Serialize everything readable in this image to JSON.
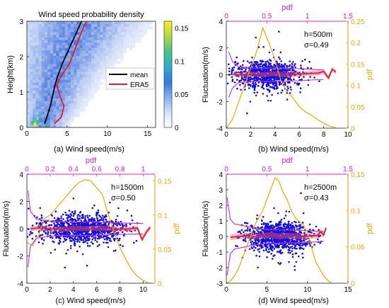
{
  "figure": {
    "captions": [
      "(a) Wind speed(m/s)",
      "(b) Wind speed(m/s)",
      "(c) Wind speed(m/s)",
      "(d) Wind speed(m/s)"
    ]
  },
  "colors": {
    "mean": "#000000",
    "era5": "#e8192c",
    "scatter": "#1010e0",
    "fluct_band": "#e06080",
    "pdf": "#f0a800",
    "top_axis": "#e020e0",
    "heat_low": "#f2f6fd",
    "heat_high": "#2a60d8"
  },
  "chart_data": [
    {
      "id": "a",
      "type": "heatmap",
      "title": "Wind speed probability density",
      "xlabel": "Wind speed(m/s)",
      "ylabel": "Height(km)",
      "xlim": [
        0,
        16
      ],
      "ylim": [
        0,
        3
      ],
      "xticks": [
        "0",
        "5",
        "10",
        "15"
      ],
      "yticks": [
        "0",
        "1",
        "2",
        "3"
      ],
      "colorbar": {
        "range": [
          0,
          0.16
        ],
        "ticks": [
          "0",
          "0.05",
          "0.1",
          "0.15"
        ]
      },
      "legend": {
        "position": "center-right",
        "entries": [
          "mean",
          "ERA5"
        ]
      },
      "series": [
        {
          "name": "mean",
          "x": [
            2.2,
            2.5,
            2.9,
            3.2,
            3.5,
            3.9,
            4.4,
            5.0,
            5.6,
            6.2,
            6.8
          ],
          "y": [
            0.1,
            0.3,
            0.6,
            0.9,
            1.2,
            1.5,
            1.8,
            2.1,
            2.4,
            2.7,
            3.0
          ]
        },
        {
          "name": "ERA5",
          "x": [
            3.4,
            4.3,
            4.6,
            4.1,
            3.7,
            4.4,
            5.3,
            5.8,
            6.3,
            6.8,
            7.4
          ],
          "y": [
            0.1,
            0.3,
            0.6,
            0.9,
            1.2,
            1.5,
            1.8,
            2.1,
            2.4,
            2.7,
            3.0
          ]
        }
      ]
    },
    {
      "id": "b",
      "type": "scatter",
      "annotation": [
        "h=500m",
        "σ=0.49"
      ],
      "xlabel": "Wind speed(m/s)",
      "ylabel": "Fluctuation(m/s)",
      "y2label": "pdf",
      "top_label": "pdf",
      "xlim": [
        0,
        10
      ],
      "ylim": [
        -4,
        4
      ],
      "y2lim": [
        0,
        0.25
      ],
      "toplim": [
        0,
        1.5
      ],
      "xticks": [
        "0",
        "2",
        "4",
        "6",
        "8",
        "10"
      ],
      "yticks": [
        "-4",
        "-2",
        "0",
        "2",
        "4"
      ],
      "y2ticks": [
        "0",
        "0.05",
        "0.1",
        "0.15",
        "0.2",
        "0.25"
      ],
      "topticks": [
        "0",
        "0.5",
        "1",
        "1.5"
      ],
      "scatter": {
        "center": 3.5,
        "spread": 1.7,
        "xmax": 9.0,
        "sigma": 0.49,
        "count": 900
      },
      "fluct_mean": {
        "x": [
          0.5,
          1,
          2,
          3,
          4,
          5,
          6,
          7,
          7.6,
          8,
          8.4,
          8.7,
          9.0
        ],
        "y": [
          0.05,
          -0.02,
          0.05,
          0.0,
          0.08,
          -0.02,
          0.05,
          0.1,
          0.12,
          0.25,
          -0.25,
          0.4,
          0.2
        ]
      },
      "fluct_sd": {
        "x": [
          0.2,
          0.5,
          1,
          2,
          3,
          4,
          5,
          6,
          7,
          8
        ],
        "y": [
          1.7,
          1.0,
          0.6,
          0.5,
          0.5,
          0.5,
          0.48,
          0.45,
          0.4,
          0.35
        ]
      },
      "pdf_curve": {
        "x": [
          0,
          0.5,
          1,
          1.5,
          2,
          2.5,
          3,
          3.5,
          4,
          4.5,
          5,
          5.5,
          6,
          6.5,
          7,
          7.5,
          8,
          8.5,
          9
        ],
        "y": [
          0.0,
          0.02,
          0.06,
          0.1,
          0.14,
          0.18,
          0.235,
          0.2,
          0.16,
          0.11,
          0.085,
          0.07,
          0.05,
          0.038,
          0.03,
          0.02,
          0.012,
          0.005,
          0.001
        ]
      }
    },
    {
      "id": "c",
      "type": "scatter",
      "annotation": [
        "h=1500m",
        "σ=0.50"
      ],
      "xlabel": "Wind speed(m/s)",
      "ylabel": "Fluctuation(m/s)",
      "y2label": "pdf",
      "top_label": "pdf",
      "xlim": [
        0,
        11
      ],
      "ylim": [
        -4,
        4
      ],
      "y2lim": [
        0,
        0.16
      ],
      "toplim": [
        0,
        1.1
      ],
      "xticks": [
        "0",
        "2",
        "4",
        "6",
        "8",
        "10"
      ],
      "yticks": [
        "-4",
        "-2",
        "0",
        "2",
        "4"
      ],
      "y2ticks": [
        "0",
        "0.05",
        "0.1",
        "0.15"
      ],
      "topticks": [
        "0",
        "0.2",
        "0.4",
        "0.6",
        "0.8",
        "1"
      ],
      "scatter": {
        "center": 4.8,
        "spread": 2.2,
        "xmax": 10.6,
        "sigma": 0.5,
        "count": 1000
      },
      "fluct_mean": {
        "x": [
          0.3,
          1,
          2,
          3,
          4,
          5,
          6,
          7,
          8,
          9,
          9.5,
          9.9,
          10.3,
          10.6
        ],
        "y": [
          0.0,
          0.05,
          0.0,
          -0.03,
          0.03,
          0.0,
          0.05,
          0.02,
          -0.03,
          0.0,
          0.05,
          -0.8,
          -0.2,
          0.1
        ]
      },
      "fluct_sd": {
        "x": [
          0.1,
          0.3,
          0.8,
          2,
          3,
          4,
          5,
          6,
          7,
          8,
          9,
          10
        ],
        "y": [
          2.8,
          1.3,
          0.7,
          0.55,
          0.5,
          0.5,
          0.5,
          0.48,
          0.45,
          0.42,
          0.4,
          0.38
        ]
      },
      "pdf_curve": {
        "x": [
          0,
          0.5,
          1,
          1.5,
          2,
          2.5,
          3,
          3.5,
          4,
          4.5,
          5,
          5.5,
          6,
          6.5,
          7,
          7.5,
          8,
          8.5,
          9,
          9.5,
          10,
          10.5
        ],
        "y": [
          0.06,
          0.055,
          0.07,
          0.095,
          0.1,
          0.11,
          0.12,
          0.13,
          0.14,
          0.148,
          0.152,
          0.15,
          0.14,
          0.13,
          0.1,
          0.075,
          0.052,
          0.035,
          0.02,
          0.01,
          0.004,
          0.0
        ]
      }
    },
    {
      "id": "d",
      "type": "scatter",
      "annotation": [
        "h=2500m",
        "σ=0.43"
      ],
      "xlabel": "Wind speed(m/s)",
      "ylabel": "Fluctuation(m/s)",
      "y2label": "pdf",
      "top_label": "pdf",
      "xlim": [
        0,
        15
      ],
      "ylim": [
        -3,
        4
      ],
      "y2lim": [
        0,
        0.15
      ],
      "toplim": [
        0,
        1.5
      ],
      "xticks": [
        "0",
        "5",
        "10",
        "15"
      ],
      "yticks": [
        "-3",
        "-2",
        "-1",
        "0",
        "1",
        "2",
        "3",
        "4"
      ],
      "y2ticks": [
        "0",
        "0.05",
        "0.1",
        "0.15"
      ],
      "topticks": [
        "0",
        "0.5",
        "1",
        "1.5"
      ],
      "scatter": {
        "center": 6.5,
        "spread": 2.4,
        "xmax": 12.3,
        "sigma": 0.43,
        "count": 1000
      },
      "fluct_mean": {
        "x": [
          0.5,
          1.5,
          2.5,
          3.5,
          4.5,
          5.5,
          6.5,
          7.5,
          8.5,
          9.5,
          10.5,
          11.2,
          11.6,
          12.0,
          12.3
        ],
        "y": [
          -0.05,
          0.0,
          0.05,
          -0.02,
          0.05,
          0.1,
          0.0,
          0.05,
          0.02,
          -0.02,
          0.05,
          0.05,
          0.3,
          0.1,
          0.55
        ]
      },
      "fluct_sd": {
        "x": [
          0.1,
          0.5,
          1,
          2,
          3,
          4,
          5,
          6,
          7,
          8,
          9,
          10,
          11,
          12
        ],
        "y": [
          2.5,
          1.1,
          0.8,
          0.7,
          0.6,
          0.5,
          0.45,
          0.43,
          0.42,
          0.42,
          0.4,
          0.38,
          0.35,
          0.3
        ]
      },
      "pdf_curve": {
        "x": [
          0,
          0.5,
          1,
          1.5,
          2,
          2.5,
          3,
          3.5,
          4,
          4.5,
          5,
          5.5,
          6,
          6.5,
          7,
          7.5,
          8,
          8.5,
          9,
          9.5,
          10,
          10.5,
          11,
          11.5,
          12,
          12.5,
          13
        ],
        "y": [
          0.0,
          0.003,
          0.01,
          0.02,
          0.035,
          0.05,
          0.065,
          0.08,
          0.09,
          0.1,
          0.115,
          0.13,
          0.145,
          0.14,
          0.125,
          0.115,
          0.1,
          0.09,
          0.085,
          0.08,
          0.07,
          0.05,
          0.03,
          0.02,
          0.01,
          0.004,
          0.0
        ]
      }
    }
  ]
}
